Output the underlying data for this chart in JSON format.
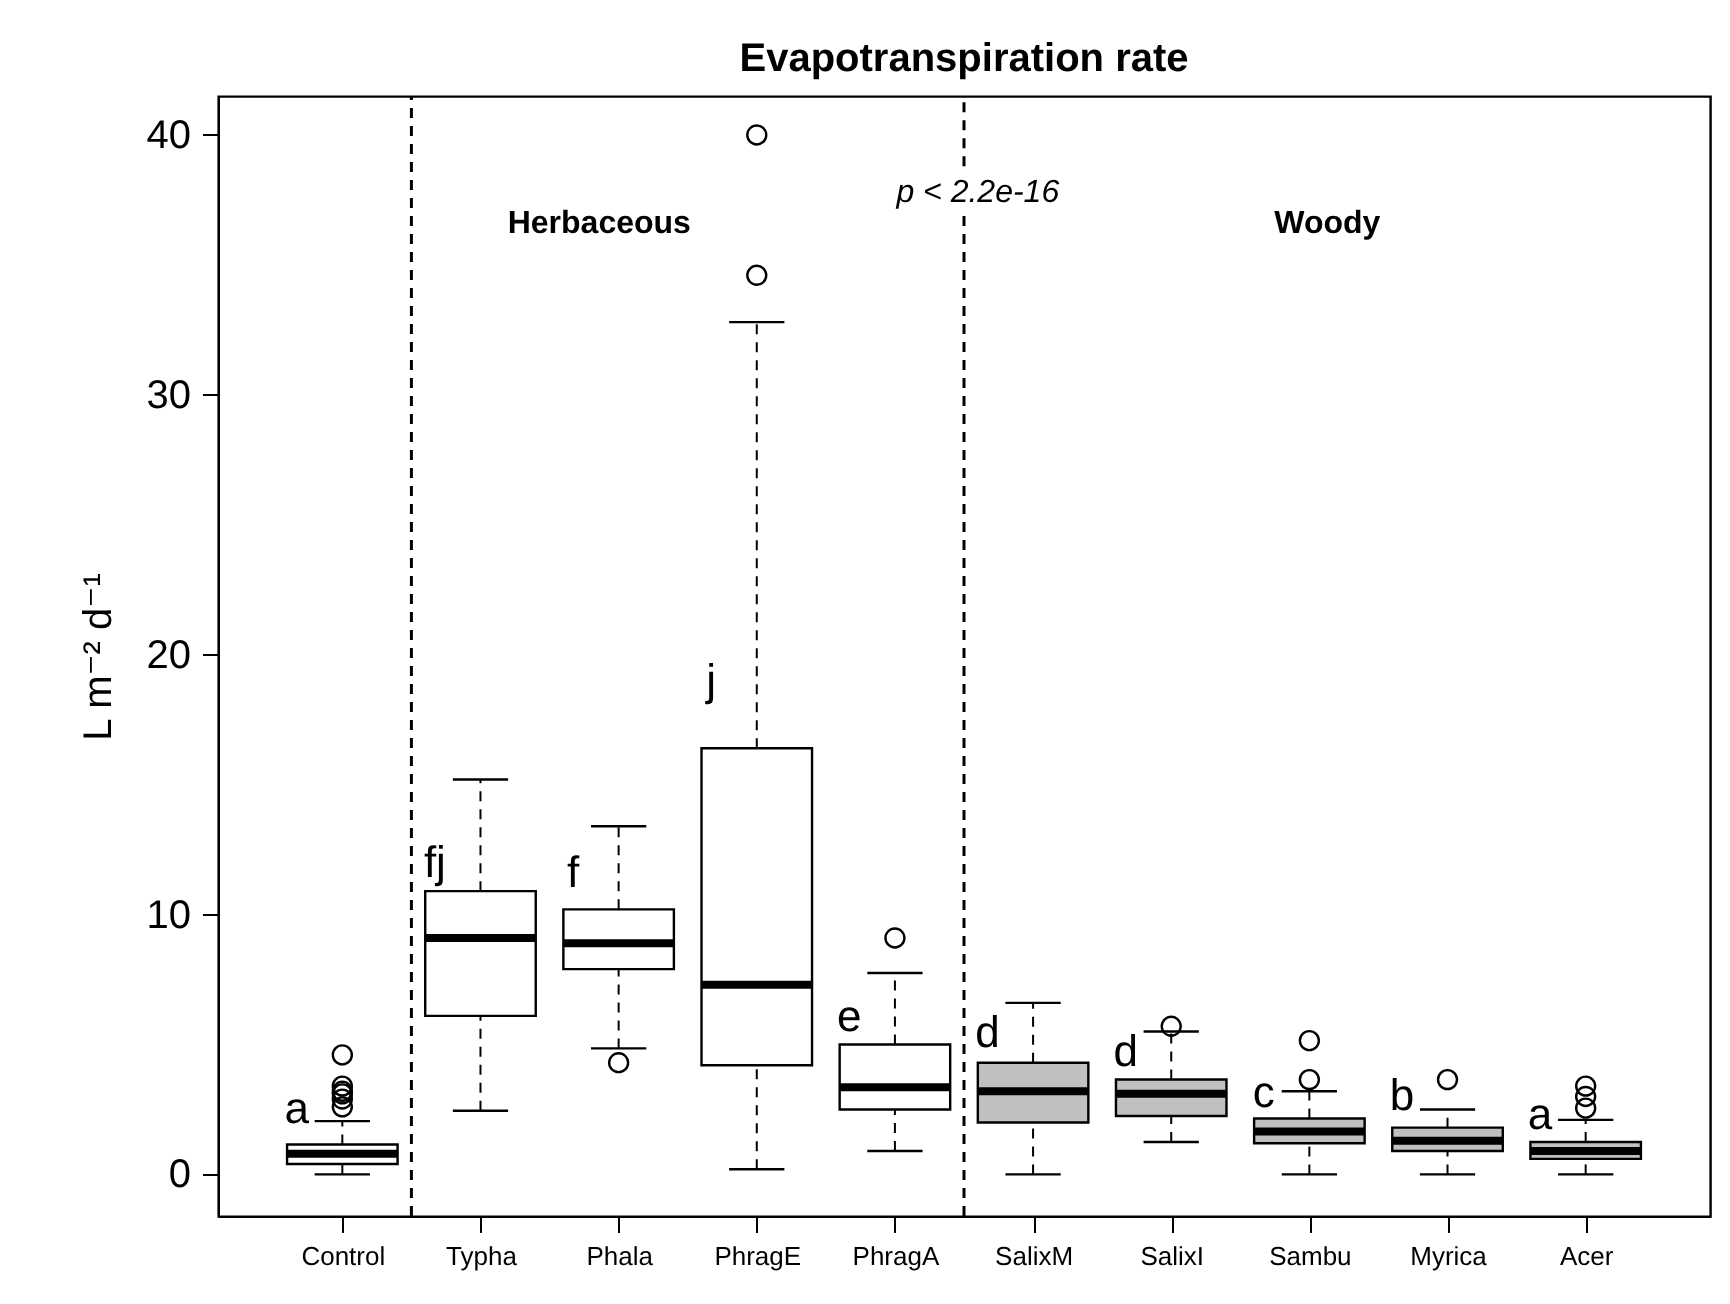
{
  "chart_data": {
    "type": "box",
    "title": "Evapotranspiration rate",
    "ylabel": "L m⁻² d⁻¹",
    "categories": [
      "Control",
      "Typha",
      "Phala",
      "PhragE",
      "PhragA",
      "SalixM",
      "SalixI",
      "Sambu",
      "Myrica",
      "Acer"
    ],
    "colors": [
      "#ffffff",
      "#ffffff",
      "#ffffff",
      "#ffffff",
      "#ffffff",
      "#c0c0c0",
      "#c0c0c0",
      "#c0c0c0",
      "#c0c0c0",
      "#c0c0c0"
    ],
    "boxes": [
      {
        "low": 0,
        "q1": 0.4,
        "median": 0.8,
        "q3": 1.15,
        "high": 2.05,
        "outliers": [
          2.6,
          2.9,
          3.1,
          3.2,
          3.4,
          4.6
        ]
      },
      {
        "low": 2.45,
        "q1": 6.1,
        "median": 9.1,
        "q3": 10.9,
        "high": 15.2
      },
      {
        "low": 4.85,
        "q1": 7.9,
        "median": 8.9,
        "q3": 10.2,
        "high": 13.4,
        "outliers": [
          4.3
        ]
      },
      {
        "low": 0.2,
        "q1": 4.2,
        "median": 7.3,
        "q3": 16.4,
        "high": 32.8,
        "outliers": [
          34.6,
          40
        ]
      },
      {
        "low": 0.9,
        "q1": 2.5,
        "median": 3.35,
        "q3": 5.0,
        "high": 7.75,
        "outliers": [
          9.1
        ]
      },
      {
        "low": 0,
        "q1": 2.0,
        "median": 3.2,
        "q3": 4.3,
        "high": 6.6
      },
      {
        "low": 1.25,
        "q1": 2.25,
        "median": 3.1,
        "q3": 3.65,
        "high": 5.5,
        "outliers": [
          5.7
        ]
      },
      {
        "low": 0,
        "q1": 1.2,
        "median": 1.65,
        "q3": 2.15,
        "high": 3.2,
        "outliers": [
          3.65,
          5.15
        ]
      },
      {
        "low": 0,
        "q1": 0.9,
        "median": 1.3,
        "q3": 1.8,
        "high": 2.5,
        "outliers": [
          3.65
        ]
      },
      {
        "low": 0,
        "q1": 0.6,
        "median": 0.9,
        "q3": 1.25,
        "high": 2.1,
        "outliers": [
          2.55,
          3.0,
          3.4
        ]
      }
    ],
    "ylim": [
      -1.6,
      41.5
    ],
    "yticks": [
      0,
      10,
      20,
      30,
      40
    ],
    "grid": false,
    "annotations": [
      "Herbaceous",
      "p < 2.2e-16",
      "Woody",
      "a",
      "b",
      {
        "text": "fj",
        "x": "Typha",
        "y": 12.0
      },
      {
        "text": "f",
        "x": "Phala",
        "y": 11.6
      },
      {
        "text": "j",
        "x": "PhragE",
        "y": 19.0
      },
      {
        "text": "e",
        "x": "PhragA",
        "y": 6.05
      },
      {
        "text": "d",
        "x": "SalixM",
        "y": 5.45
      },
      {
        "text": "d",
        "x": "SalixI",
        "y": 4.7
      },
      {
        "text": "c",
        "x": "Sambu",
        "y": 3.15
      },
      {
        "text": "a",
        "x": "Acer",
        "y": 2.3
      }
    ]
  }
}
